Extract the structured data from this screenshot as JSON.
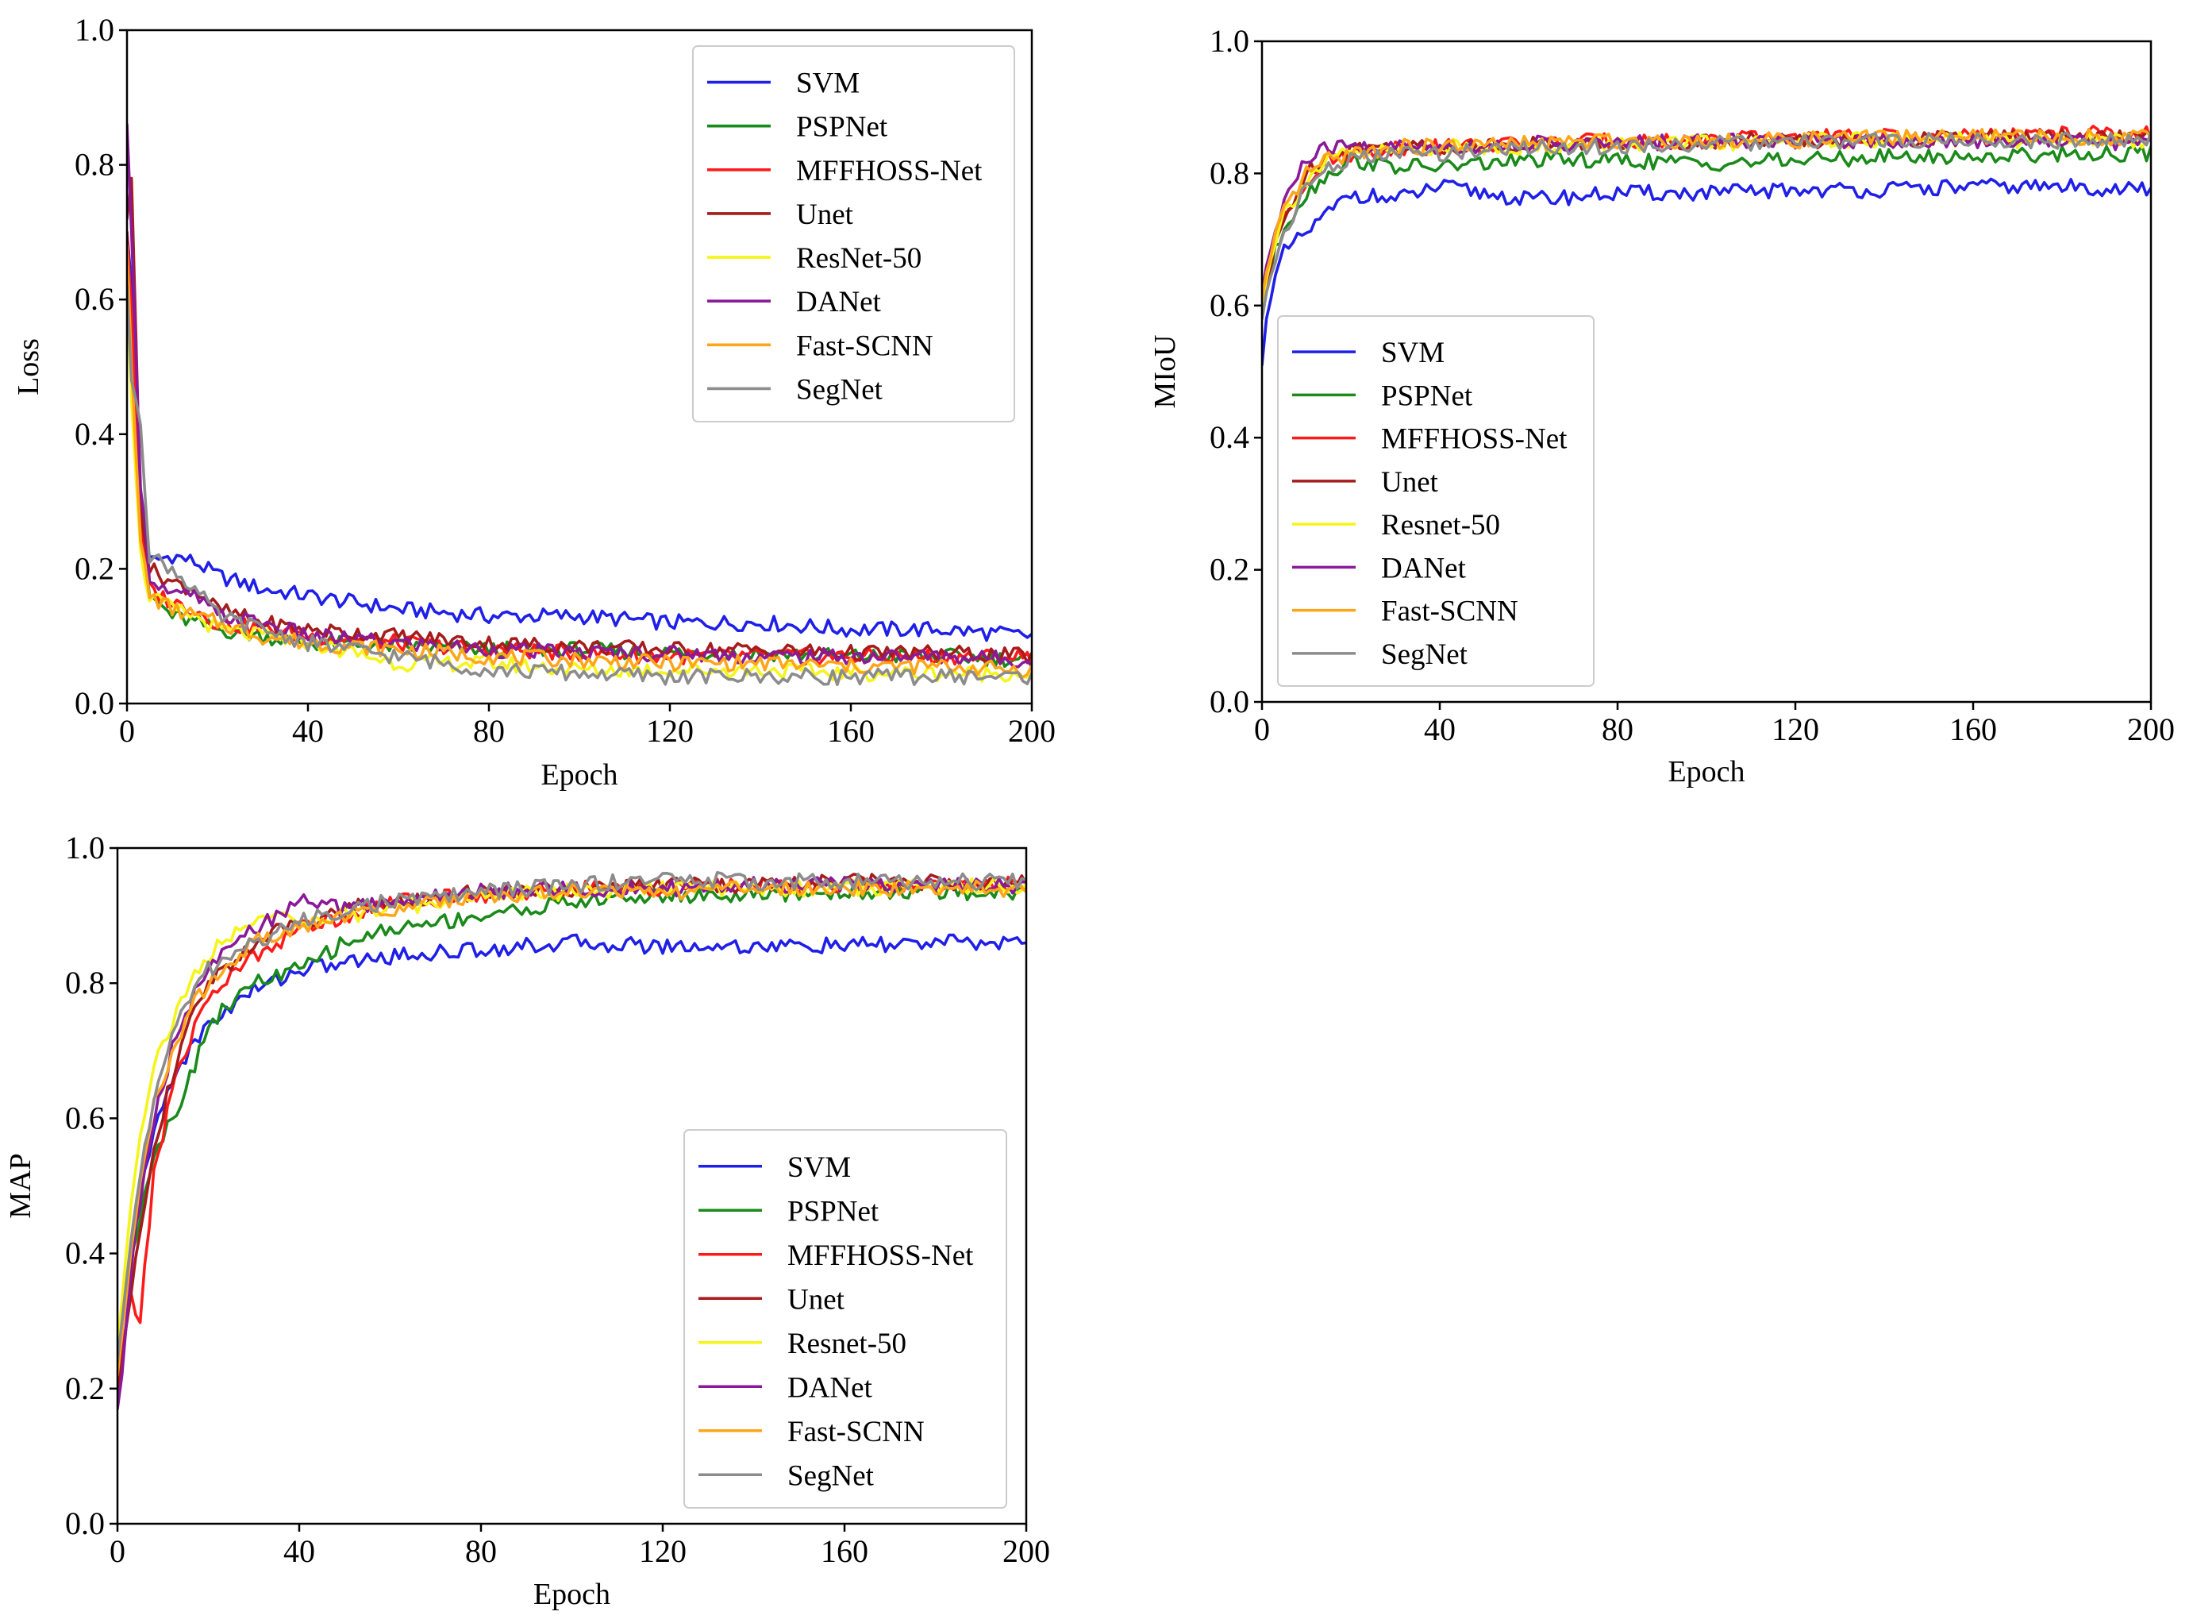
{
  "series_colors": {
    "SVM": "#1f1fe8",
    "PSPNet": "#1a8a1a",
    "MFFHOSS-Net": "#ff1a1a",
    "Unet": "#a51c1c",
    "ResNet-50": "#f5f51a",
    "DANet": "#8a1a9a",
    "Fast-SCNN": "#ffa51a",
    "SegNet": "#8c8c8c"
  },
  "chart_data": [
    {
      "type": "line",
      "xlabel": "Epoch",
      "ylabel": "Loss",
      "xlim": [
        0,
        200
      ],
      "ylim": [
        0.0,
        1.0
      ],
      "xticks": [
        "0",
        "40",
        "80",
        "120",
        "160",
        "200"
      ],
      "yticks": [
        "0.0",
        "0.2",
        "0.4",
        "0.6",
        "0.8",
        "1.0"
      ],
      "legend_position": "top-right",
      "x": [
        0,
        1,
        3,
        5,
        10,
        15,
        20,
        30,
        40,
        60,
        80,
        100,
        120,
        140,
        160,
        180,
        200
      ],
      "series": [
        {
          "name": "SVM",
          "values": [
            0.7,
            0.62,
            0.3,
            0.21,
            0.22,
            0.21,
            0.19,
            0.17,
            0.16,
            0.14,
            0.13,
            0.13,
            0.12,
            0.12,
            0.11,
            0.11,
            0.1
          ]
        },
        {
          "name": "PSPNet",
          "values": [
            0.66,
            0.52,
            0.24,
            0.16,
            0.13,
            0.12,
            0.11,
            0.1,
            0.09,
            0.085,
            0.08,
            0.08,
            0.075,
            0.075,
            0.07,
            0.07,
            0.065
          ]
        },
        {
          "name": "MFFHOSS-Net",
          "values": [
            0.7,
            0.58,
            0.26,
            0.17,
            0.15,
            0.14,
            0.12,
            0.11,
            0.1,
            0.09,
            0.08,
            0.075,
            0.07,
            0.07,
            0.07,
            0.07,
            0.07
          ]
        },
        {
          "name": "Unet",
          "values": [
            0.72,
            0.78,
            0.3,
            0.2,
            0.18,
            0.17,
            0.14,
            0.12,
            0.11,
            0.1,
            0.09,
            0.085,
            0.08,
            0.08,
            0.075,
            0.075,
            0.07
          ]
        },
        {
          "name": "ResNet-50",
          "values": [
            0.6,
            0.45,
            0.22,
            0.16,
            0.14,
            0.13,
            0.11,
            0.1,
            0.09,
            0.06,
            0.06,
            0.05,
            0.05,
            0.05,
            0.045,
            0.045,
            0.045
          ]
        },
        {
          "name": "DANet",
          "values": [
            0.86,
            0.7,
            0.33,
            0.19,
            0.16,
            0.16,
            0.13,
            0.12,
            0.1,
            0.09,
            0.08,
            0.075,
            0.075,
            0.07,
            0.07,
            0.07,
            0.065
          ]
        },
        {
          "name": "Fast-SCNN",
          "values": [
            0.68,
            0.5,
            0.24,
            0.16,
            0.14,
            0.13,
            0.12,
            0.1,
            0.09,
            0.08,
            0.07,
            0.065,
            0.06,
            0.06,
            0.055,
            0.055,
            0.05
          ]
        },
        {
          "name": "SegNet",
          "values": [
            0.62,
            0.48,
            0.42,
            0.22,
            0.2,
            0.17,
            0.13,
            0.11,
            0.09,
            0.07,
            0.05,
            0.045,
            0.04,
            0.04,
            0.04,
            0.04,
            0.04
          ]
        }
      ]
    },
    {
      "type": "line",
      "xlabel": "Epoch",
      "ylabel": "MIoU",
      "xlim": [
        0,
        200
      ],
      "ylim": [
        0.0,
        1.0
      ],
      "xticks": [
        "0",
        "40",
        "80",
        "120",
        "160",
        "200"
      ],
      "yticks": [
        "0.0",
        "0.2",
        "0.4",
        "0.6",
        "0.8",
        "1.0"
      ],
      "legend_position": "lower-left",
      "x": [
        0,
        1,
        3,
        5,
        10,
        15,
        20,
        30,
        40,
        60,
        80,
        100,
        120,
        140,
        160,
        180,
        200
      ],
      "series": [
        {
          "name": "SVM",
          "values": [
            0.51,
            0.58,
            0.64,
            0.68,
            0.71,
            0.74,
            0.77,
            0.76,
            0.78,
            0.76,
            0.77,
            0.77,
            0.775,
            0.775,
            0.78,
            0.78,
            0.775
          ]
        },
        {
          "name": "PSPNet",
          "values": [
            0.58,
            0.62,
            0.68,
            0.72,
            0.77,
            0.8,
            0.82,
            0.81,
            0.81,
            0.82,
            0.82,
            0.815,
            0.82,
            0.825,
            0.825,
            0.83,
            0.83
          ]
        },
        {
          "name": "MFFHOSS-Net",
          "values": [
            0.6,
            0.65,
            0.7,
            0.74,
            0.79,
            0.82,
            0.83,
            0.84,
            0.84,
            0.845,
            0.85,
            0.85,
            0.855,
            0.855,
            0.855,
            0.86,
            0.86
          ]
        },
        {
          "name": "Unet",
          "values": [
            0.59,
            0.63,
            0.69,
            0.73,
            0.8,
            0.83,
            0.84,
            0.84,
            0.84,
            0.845,
            0.845,
            0.85,
            0.85,
            0.85,
            0.855,
            0.855,
            0.855
          ]
        },
        {
          "name": "Resnet-50",
          "values": [
            0.6,
            0.64,
            0.7,
            0.74,
            0.79,
            0.82,
            0.83,
            0.835,
            0.84,
            0.84,
            0.845,
            0.845,
            0.85,
            0.85,
            0.85,
            0.85,
            0.85
          ]
        },
        {
          "name": "DANet",
          "values": [
            0.62,
            0.66,
            0.71,
            0.76,
            0.82,
            0.84,
            0.84,
            0.84,
            0.84,
            0.845,
            0.845,
            0.85,
            0.85,
            0.85,
            0.85,
            0.85,
            0.845
          ]
        },
        {
          "name": "Fast-SCNN",
          "values": [
            0.61,
            0.65,
            0.7,
            0.74,
            0.8,
            0.82,
            0.83,
            0.84,
            0.84,
            0.845,
            0.85,
            0.85,
            0.85,
            0.855,
            0.855,
            0.855,
            0.855
          ]
        },
        {
          "name": "SegNet",
          "values": [
            0.58,
            0.62,
            0.67,
            0.71,
            0.78,
            0.81,
            0.82,
            0.83,
            0.83,
            0.84,
            0.84,
            0.845,
            0.845,
            0.85,
            0.85,
            0.85,
            0.85
          ]
        }
      ]
    },
    {
      "type": "line",
      "xlabel": "Epoch",
      "ylabel": "MAP",
      "xlim": [
        0,
        200
      ],
      "ylim": [
        0.0,
        1.0
      ],
      "xticks": [
        "0",
        "40",
        "80",
        "120",
        "160",
        "200"
      ],
      "yticks": [
        "0.0",
        "0.2",
        "0.4",
        "0.6",
        "0.8",
        "1.0"
      ],
      "legend_position": "lower-right",
      "x": [
        0,
        1,
        3,
        5,
        8,
        12,
        16,
        20,
        30,
        40,
        50,
        60,
        80,
        100,
        120,
        140,
        160,
        180,
        200
      ],
      "series": [
        {
          "name": "SVM",
          "values": [
            0.25,
            0.3,
            0.4,
            0.48,
            0.58,
            0.66,
            0.7,
            0.74,
            0.79,
            0.82,
            0.83,
            0.84,
            0.85,
            0.86,
            0.855,
            0.855,
            0.855,
            0.86,
            0.86
          ]
        },
        {
          "name": "PSPNet",
          "values": [
            0.24,
            0.3,
            0.4,
            0.46,
            0.55,
            0.6,
            0.66,
            0.74,
            0.8,
            0.82,
            0.86,
            0.88,
            0.9,
            0.92,
            0.93,
            0.93,
            0.935,
            0.935,
            0.935
          ]
        },
        {
          "name": "MFFHOSS-Net",
          "values": [
            0.2,
            0.26,
            0.33,
            0.3,
            0.52,
            0.64,
            0.72,
            0.78,
            0.84,
            0.88,
            0.9,
            0.92,
            0.93,
            0.94,
            0.94,
            0.945,
            0.945,
            0.945,
            0.95
          ]
        },
        {
          "name": "Unet",
          "values": [
            0.18,
            0.24,
            0.35,
            0.44,
            0.56,
            0.66,
            0.74,
            0.8,
            0.86,
            0.89,
            0.91,
            0.92,
            0.935,
            0.94,
            0.945,
            0.945,
            0.95,
            0.95,
            0.95
          ]
        },
        {
          "name": "Resnet-50",
          "values": [
            0.26,
            0.33,
            0.48,
            0.58,
            0.68,
            0.74,
            0.8,
            0.84,
            0.9,
            0.89,
            0.9,
            0.91,
            0.93,
            0.935,
            0.94,
            0.94,
            0.94,
            0.945,
            0.945
          ]
        },
        {
          "name": "DANet",
          "values": [
            0.17,
            0.22,
            0.38,
            0.48,
            0.6,
            0.7,
            0.77,
            0.82,
            0.88,
            0.92,
            0.91,
            0.92,
            0.935,
            0.94,
            0.94,
            0.945,
            0.945,
            0.945,
            0.945
          ]
        },
        {
          "name": "Fast-SCNN",
          "values": [
            0.22,
            0.28,
            0.4,
            0.5,
            0.62,
            0.7,
            0.76,
            0.8,
            0.86,
            0.88,
            0.9,
            0.91,
            0.93,
            0.935,
            0.935,
            0.94,
            0.94,
            0.94,
            0.94
          ]
        },
        {
          "name": "SegNet",
          "values": [
            0.24,
            0.3,
            0.42,
            0.52,
            0.63,
            0.72,
            0.78,
            0.82,
            0.86,
            0.89,
            0.91,
            0.92,
            0.935,
            0.945,
            0.955,
            0.95,
            0.95,
            0.95,
            0.95
          ]
        }
      ]
    }
  ]
}
